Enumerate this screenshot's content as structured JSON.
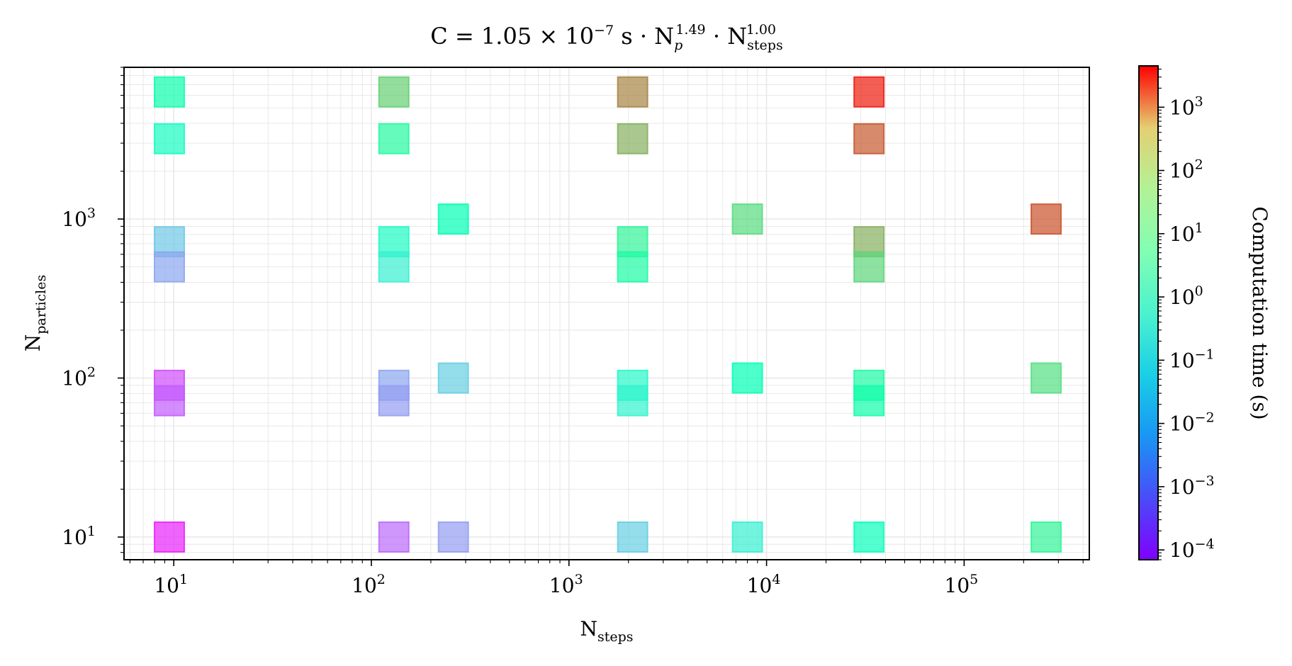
{
  "chart_data": {
    "type": "scatter",
    "marker": "square",
    "title": {
      "prefix": "C = 1.05 × 10",
      "prefix_exp": "−7",
      "mid": " s · N",
      "mid_sub": "p",
      "mid_exp": "1.49",
      "dot": " · N",
      "end_sub": "steps",
      "end_exp": "1.00"
    },
    "xlabel": {
      "base": "N",
      "sub": "steps"
    },
    "ylabel": {
      "base": "N",
      "sub": "particles"
    },
    "xscale": "log",
    "yscale": "log",
    "xlim": [
      5.6,
      430000
    ],
    "ylim": [
      7.2,
      9000
    ],
    "grid": true,
    "x_ticks": [
      {
        "value": 10,
        "base": "10",
        "exp": "1"
      },
      {
        "value": 100,
        "base": "10",
        "exp": "2"
      },
      {
        "value": 1000,
        "base": "10",
        "exp": "3"
      },
      {
        "value": 10000,
        "base": "10",
        "exp": "4"
      },
      {
        "value": 100000,
        "base": "10",
        "exp": "5"
      }
    ],
    "y_ticks": [
      {
        "value": 10,
        "base": "10",
        "exp": "1"
      },
      {
        "value": 100,
        "base": "10",
        "exp": "2"
      },
      {
        "value": 1000,
        "base": "10",
        "exp": "3"
      }
    ],
    "colorbar": {
      "label": "Computation time (s)",
      "colormap": "rainbow",
      "scale": "log",
      "range": [
        7e-05,
        4500
      ],
      "ticks": [
        {
          "value": 0.0001,
          "base": "10",
          "exp": "−4"
        },
        {
          "value": 0.001,
          "base": "10",
          "exp": "−3"
        },
        {
          "value": 0.01,
          "base": "10",
          "exp": "−2"
        },
        {
          "value": 0.1,
          "base": "10",
          "exp": "−1"
        },
        {
          "value": 1,
          "base": "10",
          "exp": "0"
        },
        {
          "value": 10,
          "base": "10",
          "exp": "1"
        },
        {
          "value": 100,
          "base": "10",
          "exp": "2"
        },
        {
          "value": 1000,
          "base": "10",
          "exp": "3"
        }
      ]
    },
    "points": [
      {
        "x": 9.5,
        "y": 6300,
        "time": 0.9
      },
      {
        "x": 9.5,
        "y": 3200,
        "time": 0.25
      },
      {
        "x": 9.5,
        "y": 720,
        "time": 0.012
      },
      {
        "x": 9.5,
        "y": 500,
        "time": 0.004
      },
      {
        "x": 9.5,
        "y": 90,
        "time": 0.0004
      },
      {
        "x": 9.5,
        "y": 72,
        "time": 0.0006
      },
      {
        "x": 9.5,
        "y": 10,
        "time": 0.00015
      },
      {
        "x": 130,
        "y": 6300,
        "time": 20
      },
      {
        "x": 130,
        "y": 3200,
        "time": 2
      },
      {
        "x": 130,
        "y": 720,
        "time": 0.2
      },
      {
        "x": 130,
        "y": 500,
        "time": 0.08
      },
      {
        "x": 130,
        "y": 90,
        "time": 0.004
      },
      {
        "x": 130,
        "y": 72,
        "time": 0.003
      },
      {
        "x": 130,
        "y": 10,
        "time": 0.0008
      },
      {
        "x": 260,
        "y": 1000,
        "time": 0.6
      },
      {
        "x": 260,
        "y": 100,
        "time": 0.015
      },
      {
        "x": 260,
        "y": 10,
        "time": 0.003
      },
      {
        "x": 2100,
        "y": 6300,
        "time": 200
      },
      {
        "x": 2100,
        "y": 3200,
        "time": 60
      },
      {
        "x": 2100,
        "y": 720,
        "time": 3
      },
      {
        "x": 2100,
        "y": 500,
        "time": 1.5
      },
      {
        "x": 2100,
        "y": 90,
        "time": 0.15
      },
      {
        "x": 2100,
        "y": 72,
        "time": 0.1
      },
      {
        "x": 2100,
        "y": 10,
        "time": 0.015
      },
      {
        "x": 8000,
        "y": 1000,
        "time": 12
      },
      {
        "x": 8000,
        "y": 100,
        "time": 0.6
      },
      {
        "x": 8000,
        "y": 10,
        "time": 0.08
      },
      {
        "x": 33000,
        "y": 6300,
        "time": 2500
      },
      {
        "x": 33000,
        "y": 3200,
        "time": 600
      },
      {
        "x": 33000,
        "y": 720,
        "time": 60
      },
      {
        "x": 33000,
        "y": 500,
        "time": 15
      },
      {
        "x": 33000,
        "y": 90,
        "time": 1.5
      },
      {
        "x": 33000,
        "y": 72,
        "time": 1
      },
      {
        "x": 33000,
        "y": 10,
        "time": 0.4
      },
      {
        "x": 260000,
        "y": 1000,
        "time": 700
      },
      {
        "x": 260000,
        "y": 100,
        "time": 10
      },
      {
        "x": 260000,
        "y": 10,
        "time": 3
      }
    ]
  }
}
